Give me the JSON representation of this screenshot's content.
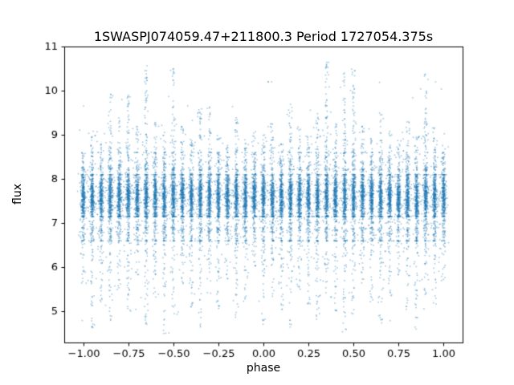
{
  "figure": {
    "background": "#ffffff"
  },
  "chart_data": {
    "type": "scatter",
    "title": "1SWASPJ074059.47+211800.3 Period 1727054.375s",
    "xlabel": "phase",
    "ylabel": "flux",
    "xlim": [
      -1.105,
      1.105
    ],
    "ylim": [
      4.3,
      11.0
    ],
    "xticks": [
      -1.0,
      -0.75,
      -0.5,
      -0.25,
      0.0,
      0.25,
      0.5,
      0.75,
      1.0
    ],
    "xtick_labels": [
      "−1.00",
      "−0.75",
      "−0.50",
      "−0.25",
      "0.00",
      "0.25",
      "0.50",
      "0.75",
      "1.00"
    ],
    "yticks": [
      5,
      6,
      7,
      8,
      9,
      10,
      11
    ],
    "ytick_labels": [
      "5",
      "6",
      "7",
      "8",
      "9",
      "10",
      "11"
    ],
    "grid": false,
    "legend": "none",
    "marker_color": "#1f77b4",
    "marker_alpha": 0.45,
    "marker_size_px": 1.5,
    "description": "Dense photometric scatter: core band of flux 7.1-8.1 at all phases, with vertical alias columns every 0.05 in phase showing sparse tails up to ~10.65 and down to ~4.5",
    "columns": {
      "phases": [
        -1.0,
        -0.95,
        -0.9,
        -0.85,
        -0.8,
        -0.75,
        -0.7,
        -0.65,
        -0.6,
        -0.55,
        -0.5,
        -0.45,
        -0.4,
        -0.35,
        -0.3,
        -0.25,
        -0.2,
        -0.15,
        -0.1,
        -0.05,
        0.0,
        0.05,
        0.1,
        0.15,
        0.2,
        0.25,
        0.3,
        0.35,
        0.4,
        0.45,
        0.5,
        0.55,
        0.6,
        0.65,
        0.7,
        0.75,
        0.8,
        0.85,
        0.9,
        0.95,
        1.0
      ],
      "max_flux": [
        8.6,
        9.1,
        8.8,
        10.0,
        9.4,
        9.9,
        9.2,
        10.6,
        9.3,
        9.0,
        10.5,
        9.2,
        8.9,
        9.6,
        9.7,
        9.0,
        8.8,
        9.4,
        8.9,
        9.1,
        9.0,
        9.3,
        8.8,
        9.7,
        9.2,
        9.0,
        9.4,
        10.65,
        9.3,
        10.4,
        10.5,
        9.2,
        9.0,
        9.5,
        9.1,
        8.9,
        9.3,
        9.0,
        10.4,
        9.2,
        8.7
      ],
      "min_flux": [
        5.6,
        4.6,
        5.2,
        4.8,
        5.5,
        5.0,
        5.8,
        4.7,
        5.3,
        4.5,
        4.9,
        5.6,
        5.1,
        4.6,
        5.4,
        5.0,
        5.7,
        4.8,
        5.2,
        5.9,
        4.7,
        5.3,
        5.0,
        4.6,
        5.5,
        5.1,
        4.8,
        5.4,
        5.0,
        4.5,
        4.9,
        5.6,
        5.2,
        4.7,
        5.3,
        5.8,
        5.0,
        4.6,
        5.4,
        5.1,
        5.7
      ],
      "core_center": 7.6,
      "core_low": 7.15,
      "core_high": 8.1,
      "core_points": 260,
      "mid_points": 120,
      "x_jitter": 0.005
    },
    "scatter_noise": {
      "count": 700,
      "flux_mean": 7.5,
      "flux_sd": 0.9,
      "flux_min": 4.5,
      "flux_max": 10.2
    },
    "seed": 42
  }
}
